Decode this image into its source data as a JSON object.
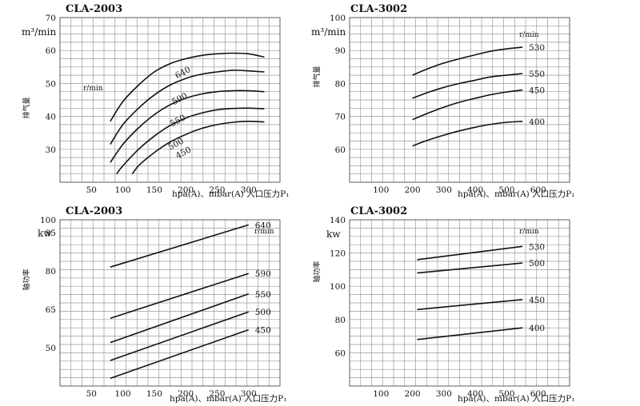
{
  "chart_data": [
    {
      "type": "line",
      "title": "CLA-2003",
      "ylabel": "m³/min",
      "ylabel_vertical": "排气量",
      "xlabel": "hpa(A)、mbar(A) 入口压力P₁",
      "xlim": [
        0,
        350
      ],
      "ylim": [
        20,
        70
      ],
      "xticks": [
        50,
        100,
        150,
        200,
        250,
        300
      ],
      "yticks": [
        30,
        40,
        50,
        60,
        70
      ],
      "rpm_label": "r/min",
      "grid": true,
      "series": [
        {
          "name": "640",
          "x": [
            80,
            100,
            125,
            150,
            175,
            200,
            225,
            250,
            275,
            300,
            325
          ],
          "y": [
            38.5,
            44.5,
            49.5,
            53.5,
            56,
            57.5,
            58.5,
            59,
            59.2,
            59,
            58
          ]
        },
        {
          "name": "590",
          "x": [
            80,
            100,
            125,
            150,
            175,
            200,
            225,
            250,
            275,
            300,
            325
          ],
          "y": [
            31.5,
            37.5,
            42.5,
            46.5,
            49.5,
            51.5,
            52.8,
            53.5,
            54,
            53.8,
            53.5
          ]
        },
        {
          "name": "550",
          "x": [
            80,
            100,
            125,
            150,
            175,
            200,
            225,
            250,
            275,
            300,
            325
          ],
          "y": [
            26,
            31.5,
            36.5,
            40.5,
            43.5,
            45.5,
            46.8,
            47.5,
            47.8,
            47.8,
            47.5
          ]
        },
        {
          "name": "500",
          "x": [
            90,
            100,
            125,
            150,
            175,
            200,
            225,
            250,
            275,
            300,
            325
          ],
          "y": [
            22.5,
            25,
            30,
            34,
            37.2,
            39.5,
            41,
            42,
            42.4,
            42.5,
            42.3
          ]
        },
        {
          "name": "450",
          "x": [
            115,
            125,
            150,
            175,
            200,
            225,
            250,
            275,
            300,
            325
          ],
          "y": [
            22.5,
            25,
            29,
            32.2,
            34.5,
            36.3,
            37.5,
            38.2,
            38.5,
            38.3
          ]
        }
      ]
    },
    {
      "type": "line",
      "title": "CLA-3002",
      "ylabel": "m³/min",
      "ylabel_vertical": "排气量",
      "xlabel": "hpa(A)、mbar(A) 入口压力P₁",
      "xlim": [
        0,
        700
      ],
      "ylim": [
        50,
        100
      ],
      "xticks": [
        100,
        200,
        300,
        400,
        500,
        600
      ],
      "yticks": [
        60,
        70,
        80,
        90,
        100
      ],
      "rpm_label": "r/min",
      "grid": true,
      "series": [
        {
          "name": "530",
          "x": [
            200,
            250,
            300,
            350,
            400,
            450,
            500,
            550
          ],
          "y": [
            82.5,
            84.5,
            86.2,
            87.5,
            88.7,
            89.8,
            90.5,
            91
          ]
        },
        {
          "name": "550",
          "x": [
            200,
            250,
            300,
            350,
            400,
            450,
            500,
            550
          ],
          "y": [
            75.5,
            77.3,
            78.8,
            80,
            81,
            82,
            82.5,
            83
          ]
        },
        {
          "name": "450",
          "x": [
            200,
            250,
            300,
            350,
            400,
            450,
            500,
            550
          ],
          "y": [
            69,
            71,
            72.8,
            74.3,
            75.5,
            76.6,
            77.4,
            78
          ]
        },
        {
          "name": "400",
          "x": [
            200,
            250,
            300,
            350,
            400,
            450,
            500,
            550
          ],
          "y": [
            61,
            62.8,
            64.3,
            65.6,
            66.7,
            67.6,
            68.2,
            68.5
          ]
        }
      ]
    },
    {
      "type": "line",
      "title": "CLA-2003",
      "ylabel": "kw",
      "ylabel_vertical": "轴功率",
      "xlabel": "hpa(A)、mbar(A) 入口压力P₁",
      "xlim": [
        0,
        350
      ],
      "ylim": [
        35,
        100
      ],
      "xticks": [
        50,
        100,
        150,
        200,
        250,
        300
      ],
      "yticks": [
        50,
        65,
        80,
        95,
        100
      ],
      "rpm_label": "r/min",
      "grid": true,
      "series": [
        {
          "name": "640",
          "x": [
            80,
            300
          ],
          "y": [
            81.5,
            98
          ]
        },
        {
          "name": "590",
          "x": [
            80,
            300
          ],
          "y": [
            61.5,
            79
          ]
        },
        {
          "name": "550",
          "x": [
            80,
            300
          ],
          "y": [
            52,
            71
          ]
        },
        {
          "name": "500",
          "x": [
            80,
            300
          ],
          "y": [
            45,
            64
          ]
        },
        {
          "name": "450",
          "x": [
            80,
            300
          ],
          "y": [
            38,
            57
          ]
        }
      ]
    },
    {
      "type": "line",
      "title": "CLA-3002",
      "ylabel": "kw",
      "ylabel_vertical": "轴功率",
      "xlabel": "hpa(A)、mbar(A) 入口压力P₁",
      "xlim": [
        0,
        700
      ],
      "ylim": [
        40,
        140
      ],
      "xticks": [
        100,
        200,
        300,
        400,
        500,
        600
      ],
      "yticks": [
        60,
        80,
        100,
        120,
        140
      ],
      "rpm_label": "r/min",
      "grid": true,
      "series": [
        {
          "name": "530",
          "x": [
            215,
            550
          ],
          "y": [
            116,
            124
          ]
        },
        {
          "name": "500",
          "x": [
            215,
            550
          ],
          "y": [
            108,
            114
          ]
        },
        {
          "name": "450",
          "x": [
            215,
            550
          ],
          "y": [
            86,
            92
          ]
        },
        {
          "name": "400",
          "x": [
            215,
            550
          ],
          "y": [
            68,
            75
          ]
        }
      ]
    }
  ]
}
